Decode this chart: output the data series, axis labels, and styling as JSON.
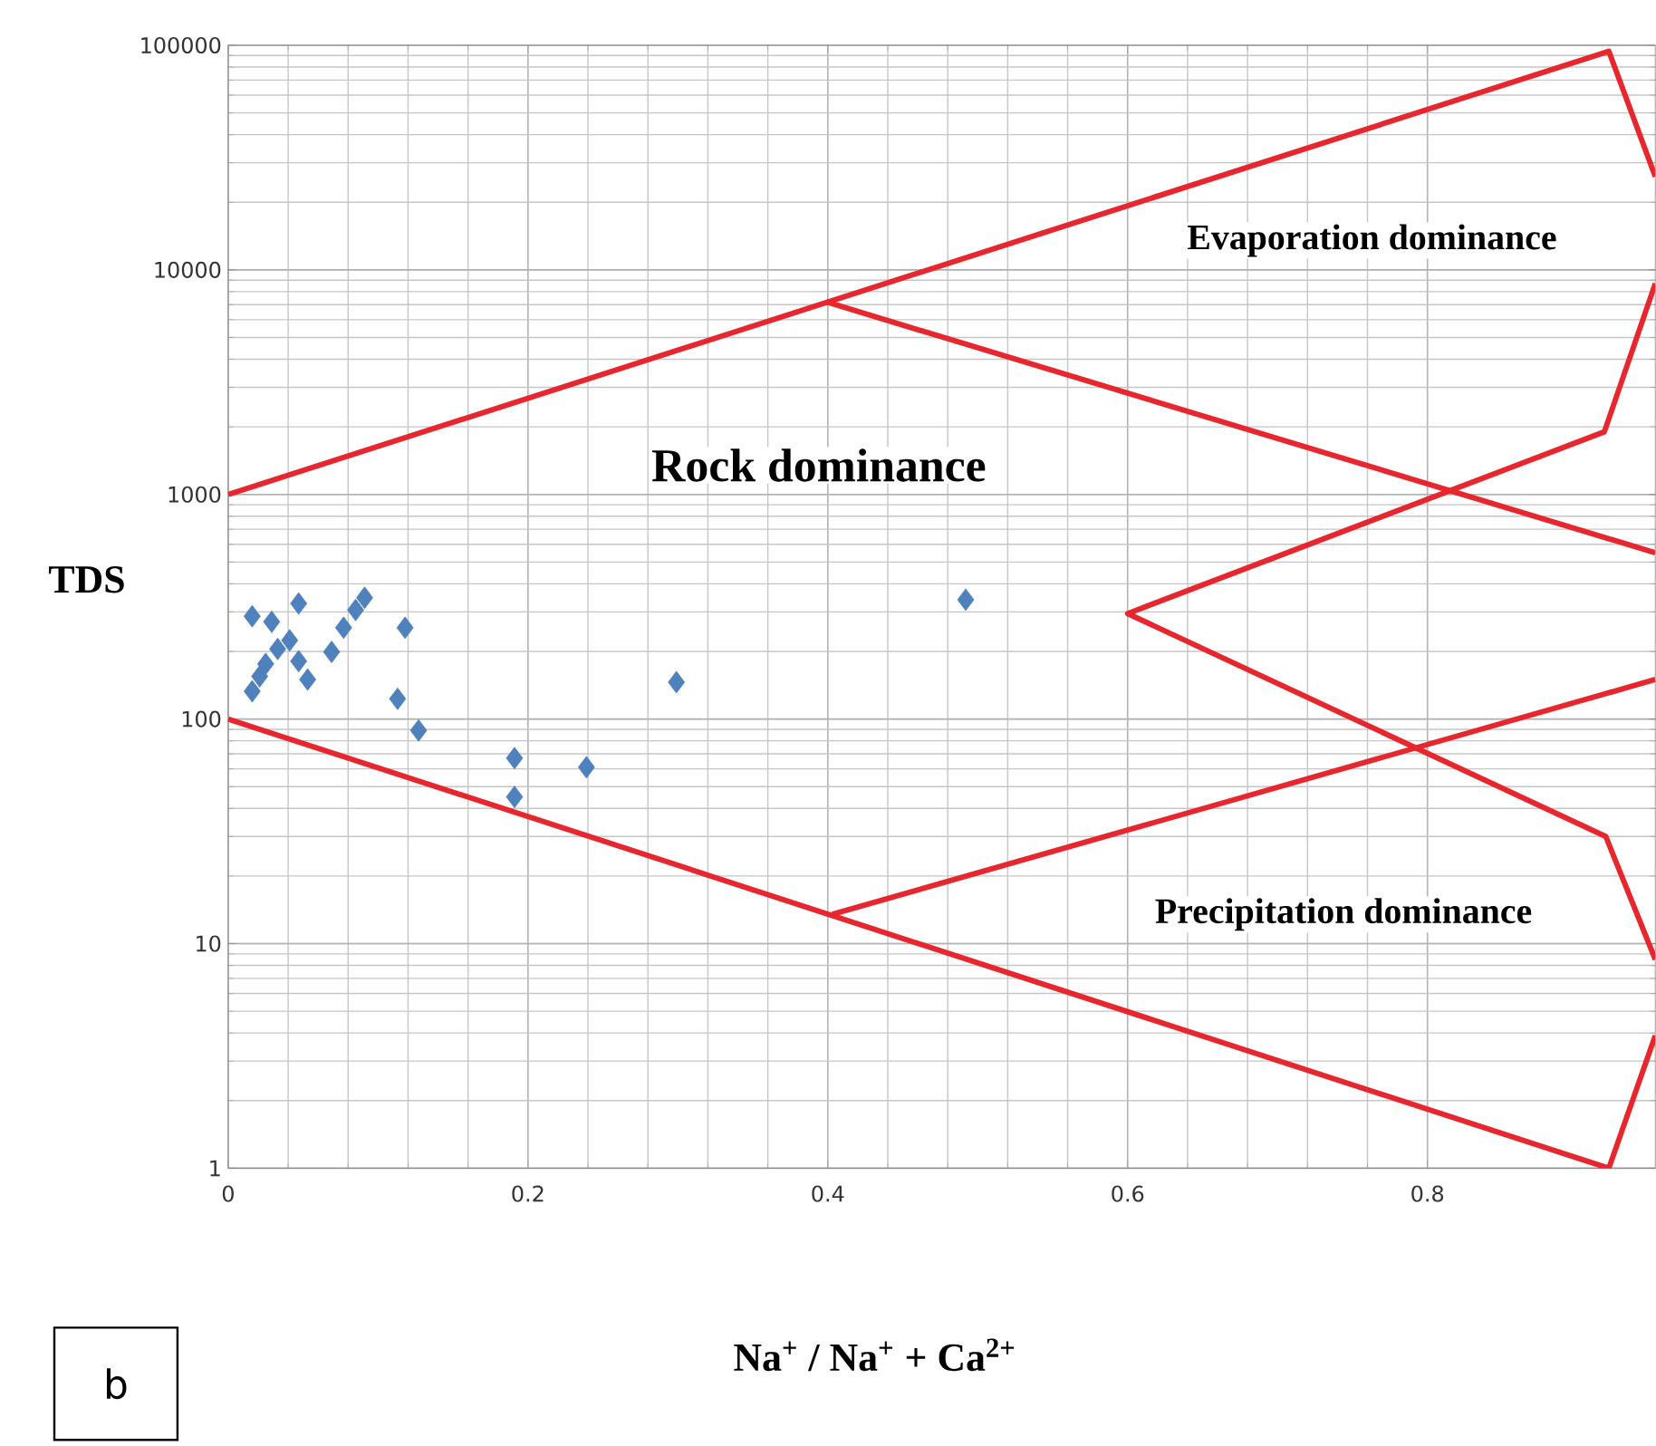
{
  "chart_data": {
    "type": "scatter",
    "xlabel": "**Na$^{+}$ / Na$^{+}$ + Ca$^{2+}$**",
    "ylabel": "TDS",
    "log": "y",
    "grid": true,
    "xlim": [
      0,
      0.952
    ],
    "xticks": [
      0,
      0.2,
      0.4,
      0.6,
      0.8
    ],
    "ylim": [
      1,
      100000
    ],
    "yticks": [
      1,
      10,
      100,
      1000,
      10000,
      100000
    ],
    "series": [
      {
        "color": "#4f81bd",
        "marker": "diamond",
        "x": [
          0.016,
          0.016,
          0.029,
          0.047,
          0.033,
          0.025,
          0.021,
          0.041,
          0.053,
          0.069,
          0.077,
          0.085,
          0.091,
          0.118,
          0.113,
          0.127,
          0.191,
          0.191,
          0.239,
          0.299,
          0.492,
          0.047
        ],
        "values": [
          133,
          287,
          271,
          327,
          205,
          176,
          155,
          224,
          150,
          199,
          255,
          306,
          347,
          255,
          123,
          89,
          67,
          45,
          61,
          146,
          340,
          181
        ]
      },
      {
        "type": "line",
        "color": "#e8262d",
        "marker": "none",
        "x": [
          0,
          0.921,
          0.952
        ],
        "values": [
          1000,
          94000,
          26000
        ]
      },
      {
        "type": "line",
        "color": "#e8262d",
        "marker": "none",
        "x": [
          0.399,
          0.952
        ],
        "values": [
          7200,
          550
        ]
      },
      {
        "type": "line",
        "color": "#e8262d",
        "marker": "none",
        "x": [
          0.952,
          0.918,
          0.6,
          0.919,
          0.952
        ],
        "values": [
          8700,
          1900,
          295,
          30,
          8.5
        ]
      },
      {
        "type": "line",
        "color": "#e8262d",
        "marker": "none",
        "x": [
          0,
          0.921,
          0.952
        ],
        "values": [
          100,
          1,
          3.9
        ]
      },
      {
        "type": "line",
        "color": "#e8262d",
        "marker": "none",
        "x": [
          0.403,
          0.952
        ],
        "values": [
          13.5,
          150
        ]
      }
    ],
    "annotations": [
      "Rock dominance",
      "Evaporation dominance",
      "Precipitation dominance",
      "b"
    ]
  }
}
